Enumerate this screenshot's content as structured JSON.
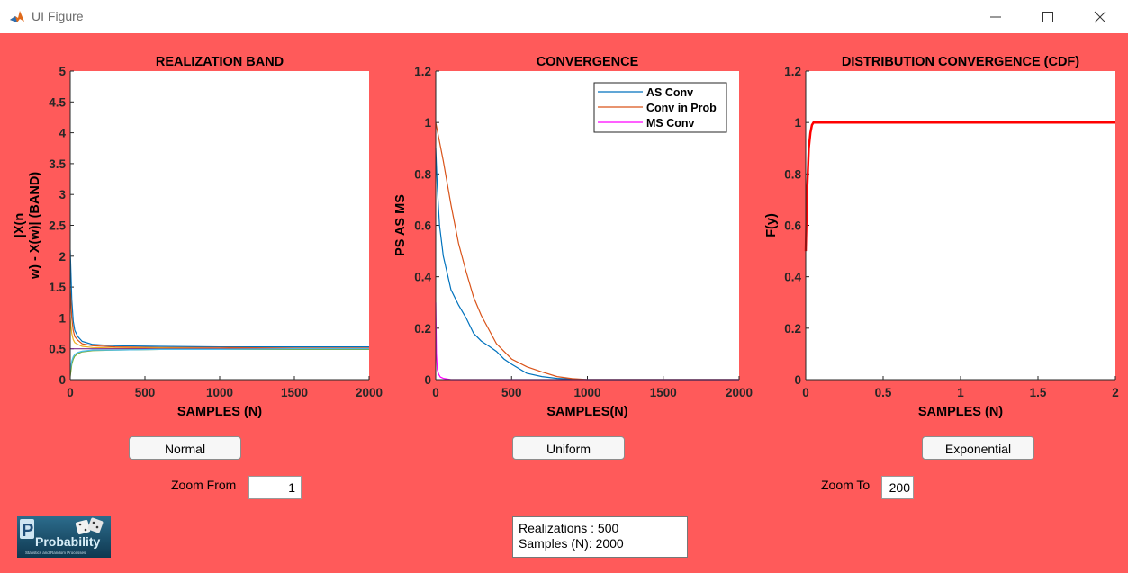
{
  "window": {
    "title": "UI Figure"
  },
  "plots": [
    {
      "title": "REALIZATION BAND",
      "xlabel": "SAMPLES (N)",
      "ylabel_lines": [
        "|X(n",
        "w) - X(w)| (BAND)"
      ],
      "xticks": [
        "0",
        "500",
        "1000",
        "1500",
        "2000"
      ],
      "yticks": [
        "0",
        "0.5",
        "1",
        "1.5",
        "2",
        "2.5",
        "3",
        "3.5",
        "4",
        "4.5",
        "5"
      ],
      "xlim": [
        0,
        2000
      ],
      "ylim": [
        0,
        5
      ]
    },
    {
      "title": "CONVERGENCE",
      "xlabel": "SAMPLES(N)",
      "ylabel_lines": [
        "PS AS MS"
      ],
      "xticks": [
        "0",
        "500",
        "1000",
        "1500",
        "2000"
      ],
      "yticks": [
        "0",
        "0.2",
        "0.4",
        "0.6",
        "0.8",
        "1",
        "1.2"
      ],
      "xlim": [
        0,
        2000
      ],
      "ylim": [
        0,
        1.2
      ],
      "legend": [
        "AS Conv",
        "Conv in Prob",
        "MS Conv"
      ]
    },
    {
      "title": "DISTRIBUTION CONVERGENCE (CDF)",
      "xlabel": "SAMPLES (N)",
      "ylabel_lines": [
        "F(y)"
      ],
      "xticks": [
        "0",
        "0.5",
        "1",
        "1.5",
        "2"
      ],
      "yticks": [
        "0",
        "0.2",
        "0.4",
        "0.6",
        "0.8",
        "1",
        "1.2"
      ],
      "xlim": [
        0,
        2
      ],
      "ylim": [
        0,
        1.2
      ]
    }
  ],
  "chart_data": [
    {
      "type": "line",
      "title": "REALIZATION BAND",
      "xlabel": "SAMPLES (N)",
      "ylabel": "|X(n w) - X(w)| (BAND)",
      "xlim": [
        0,
        2000
      ],
      "ylim": [
        0,
        5
      ],
      "grid": false,
      "series": [
        {
          "name": "",
          "x": [
            0,
            10,
            20,
            30,
            50,
            80,
            150,
            300,
            600,
            1000,
            1500,
            2000
          ],
          "y": [
            2.1,
            1.3,
            0.95,
            0.8,
            0.7,
            0.62,
            0.57,
            0.55,
            0.54,
            0.53,
            0.53,
            0.53
          ]
        },
        {
          "name": "",
          "x": [
            0,
            10,
            20,
            30,
            50,
            80,
            150,
            300,
            600,
            1000,
            1500,
            2000
          ],
          "y": [
            1.5,
            1.0,
            0.8,
            0.7,
            0.64,
            0.58,
            0.55,
            0.53,
            0.52,
            0.52,
            0.51,
            0.51
          ]
        },
        {
          "name": "",
          "x": [
            0,
            10,
            20,
            30,
            50,
            80,
            150,
            300,
            600,
            1000,
            1500,
            2000
          ],
          "y": [
            1.0,
            0.75,
            0.65,
            0.6,
            0.57,
            0.54,
            0.52,
            0.51,
            0.51,
            0.5,
            0.5,
            0.5
          ]
        },
        {
          "name": "",
          "x": [
            0,
            10,
            20,
            30,
            50,
            80,
            150,
            300,
            600,
            1000,
            1500,
            2000
          ],
          "y": [
            0.5,
            0.5,
            0.5,
            0.5,
            0.5,
            0.5,
            0.5,
            0.5,
            0.5,
            0.5,
            0.5,
            0.5
          ]
        },
        {
          "name": "",
          "x": [
            0,
            10,
            20,
            30,
            50,
            80,
            150,
            300,
            600,
            1000,
            1500,
            2000
          ],
          "y": [
            0.05,
            0.25,
            0.33,
            0.38,
            0.42,
            0.45,
            0.47,
            0.48,
            0.49,
            0.49,
            0.49,
            0.49
          ]
        },
        {
          "name": "",
          "x": [
            0,
            10,
            20,
            30,
            50,
            80,
            150,
            300,
            600,
            1000,
            1500,
            2000
          ],
          "y": [
            0.15,
            0.3,
            0.37,
            0.41,
            0.44,
            0.46,
            0.48,
            0.48,
            0.49,
            0.49,
            0.5,
            0.5
          ]
        }
      ]
    },
    {
      "type": "line",
      "title": "CONVERGENCE",
      "xlabel": "SAMPLES(N)",
      "ylabel": "PS AS MS",
      "xlim": [
        0,
        2000
      ],
      "ylim": [
        0,
        1.2
      ],
      "grid": false,
      "legend_position": "top-right",
      "series": [
        {
          "name": "AS Conv",
          "color": "#0072bd",
          "x": [
            0,
            10,
            25,
            50,
            100,
            150,
            200,
            250,
            300,
            350,
            400,
            450,
            500,
            600,
            700,
            800,
            900,
            1000,
            1500,
            2000
          ],
          "y": [
            0.9,
            0.75,
            0.6,
            0.48,
            0.35,
            0.29,
            0.24,
            0.18,
            0.15,
            0.13,
            0.11,
            0.08,
            0.06,
            0.025,
            0.012,
            0.005,
            0.002,
            0.0,
            0.0,
            0.0
          ]
        },
        {
          "name": "Conv in Prob",
          "color": "#d95319",
          "x": [
            0,
            50,
            100,
            150,
            200,
            250,
            300,
            400,
            500,
            600,
            700,
            800,
            900,
            1000,
            1500,
            2000
          ],
          "y": [
            1.0,
            0.85,
            0.68,
            0.53,
            0.42,
            0.32,
            0.25,
            0.14,
            0.08,
            0.05,
            0.03,
            0.012,
            0.004,
            0.0,
            0.0,
            0.0
          ]
        },
        {
          "name": "MS Conv",
          "color": "#ff00ff",
          "x": [
            0,
            5,
            10,
            20,
            30,
            50,
            100,
            500,
            1000,
            2000
          ],
          "y": [
            0.3,
            0.1,
            0.04,
            0.02,
            0.01,
            0.005,
            0.0,
            0.0,
            0.0,
            0.0
          ]
        }
      ]
    },
    {
      "type": "line",
      "title": "DISTRIBUTION CONVERGENCE (CDF)",
      "xlabel": "SAMPLES (N)",
      "ylabel": "F(y)",
      "xlim": [
        0,
        2
      ],
      "ylim": [
        0,
        1.2
      ],
      "grid": false,
      "series": [
        {
          "name": "",
          "color": "#ff0000",
          "x": [
            0,
            0.01,
            0.02,
            0.03,
            0.04,
            0.05,
            2
          ],
          "y": [
            0.5,
            0.75,
            0.9,
            0.96,
            0.99,
            1.0,
            1.0
          ]
        }
      ]
    }
  ],
  "controls": {
    "normal_label": "Normal",
    "uniform_label": "Uniform",
    "exponential_label": "Exponential",
    "zoom_from_label": "Zoom From",
    "zoom_from_value": "1",
    "zoom_to_label": "Zoom To",
    "zoom_to_value": "200"
  },
  "info": {
    "realizations": "Realizations : 500",
    "samples": "Samples (N): 2000"
  },
  "logo": {
    "icon": "probability-logo",
    "text": "Probability",
    "subtitle": "Statistics and Random Processes"
  },
  "colors": {
    "background": "#ff5a5a",
    "band_colors": [
      "#0072bd",
      "#d95319",
      "#edb120",
      "#7e2f8e",
      "#77ac30",
      "#4dbeee",
      "#a2142f"
    ]
  }
}
